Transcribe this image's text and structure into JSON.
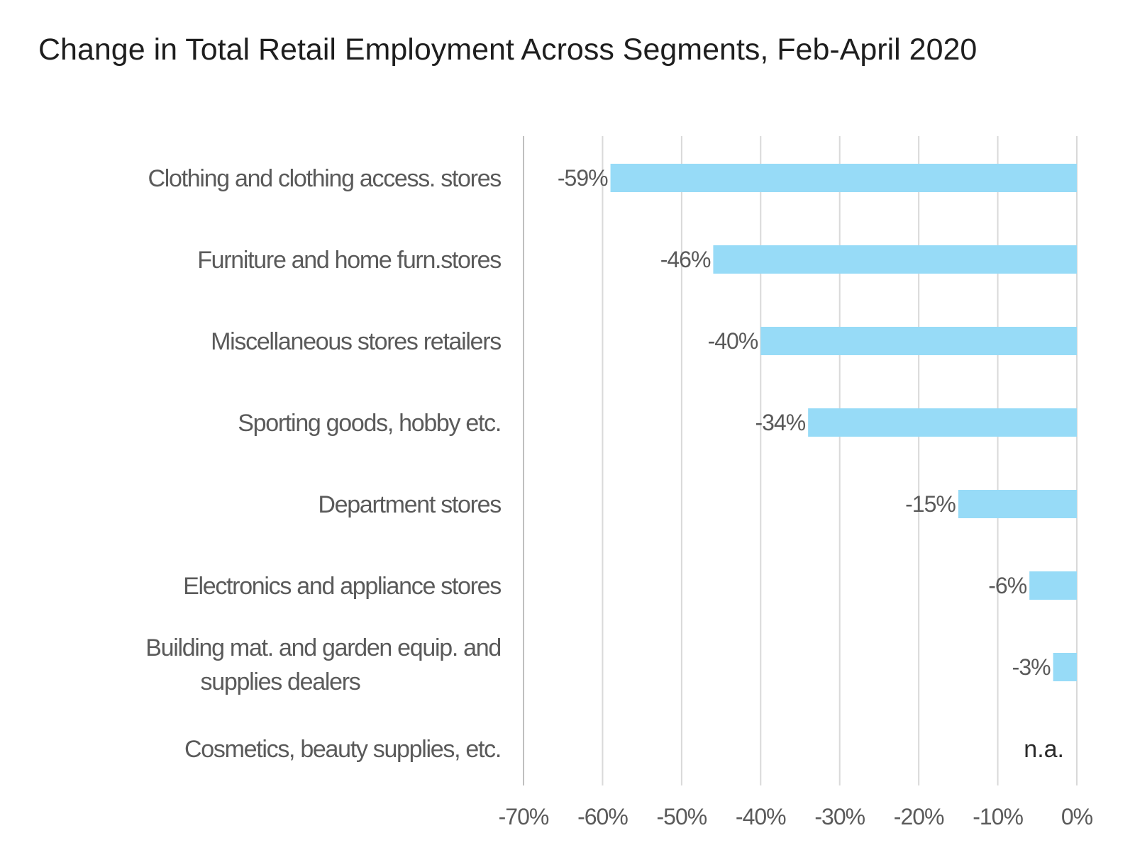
{
  "chart_data": {
    "type": "bar",
    "orientation": "horizontal",
    "title": "Change in Total Retail Employment Across Segments, Feb-April 2020",
    "categories": [
      [
        "Clothing and clothing access. stores"
      ],
      [
        "Furniture and home furn.stores"
      ],
      [
        "Miscellaneous stores retailers"
      ],
      [
        "Sporting goods, hobby etc."
      ],
      [
        "Department stores"
      ],
      [
        "Electronics and appliance stores"
      ],
      [
        "Building mat. and garden equip. and",
        "supplies dealers"
      ],
      [
        "Cosmetics, beauty supplies, etc."
      ]
    ],
    "values": [
      -59,
      -46,
      -40,
      -34,
      -15,
      -6,
      -3,
      null
    ],
    "data_labels": [
      "-59%",
      "-46%",
      "-40%",
      "-34%",
      "-15%",
      "-6%",
      "-3%",
      "n.a."
    ],
    "x_ticks": [
      -70,
      -60,
      -50,
      -40,
      -30,
      -20,
      -10,
      0
    ],
    "x_tick_labels": [
      "-70%",
      "-60%",
      "-50%",
      "-40%",
      "-30%",
      "-20%",
      "-10%",
      "0%"
    ],
    "xlim": [
      -70,
      0
    ],
    "xlabel": "",
    "ylabel": "",
    "grid": true,
    "bar_color": "#97dbf7"
  }
}
